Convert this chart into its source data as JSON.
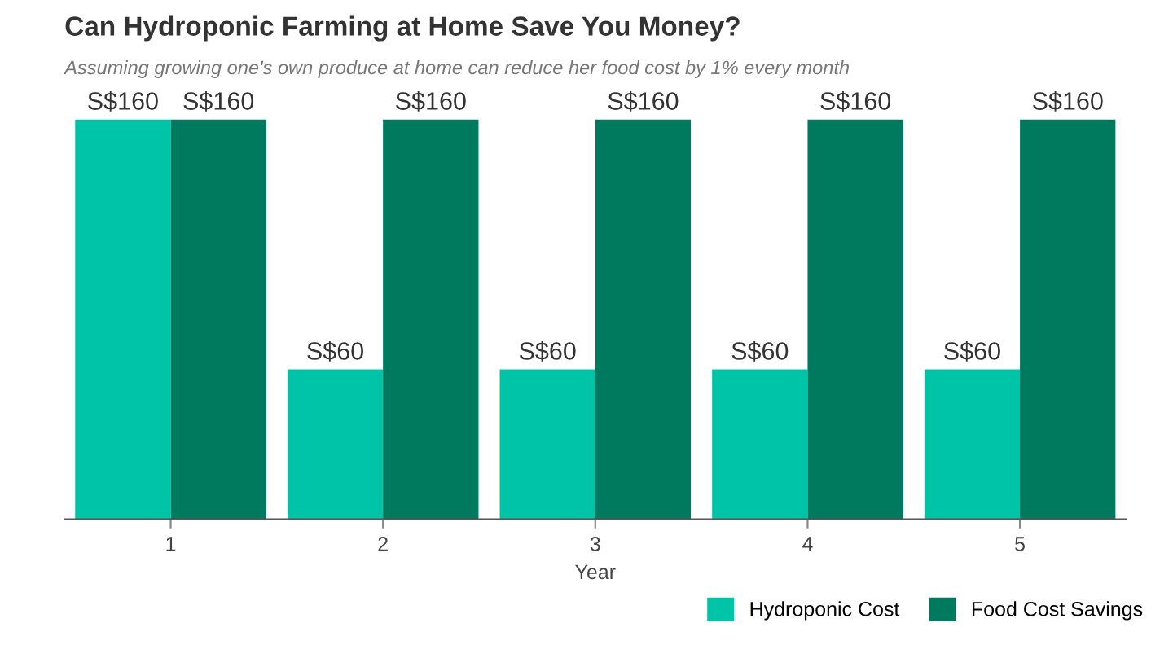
{
  "chart_data": {
    "type": "bar",
    "title": "Can Hydroponic Farming at Home Save You Money?",
    "subtitle": "Assuming growing one's own produce at home can reduce her food cost by 1% every month",
    "xlabel": "Year",
    "categories": [
      "1",
      "2",
      "3",
      "4",
      "5"
    ],
    "series": [
      {
        "name": "Hydroponic Cost",
        "color": "#00c4a7",
        "values": [
          160,
          60,
          60,
          60,
          60
        ],
        "value_labels": [
          "S$160",
          "S$60",
          "S$60",
          "S$60",
          "S$60"
        ]
      },
      {
        "name": "Food Cost Savings",
        "color": "#007a5e",
        "values": [
          160,
          160,
          160,
          160,
          160
        ],
        "value_labels": [
          "S$160",
          "S$160",
          "S$160",
          "S$160",
          "S$160"
        ]
      }
    ],
    "ylim": [
      0,
      160
    ],
    "tick_labels": "x",
    "grid": false,
    "legend": "bottom right"
  }
}
